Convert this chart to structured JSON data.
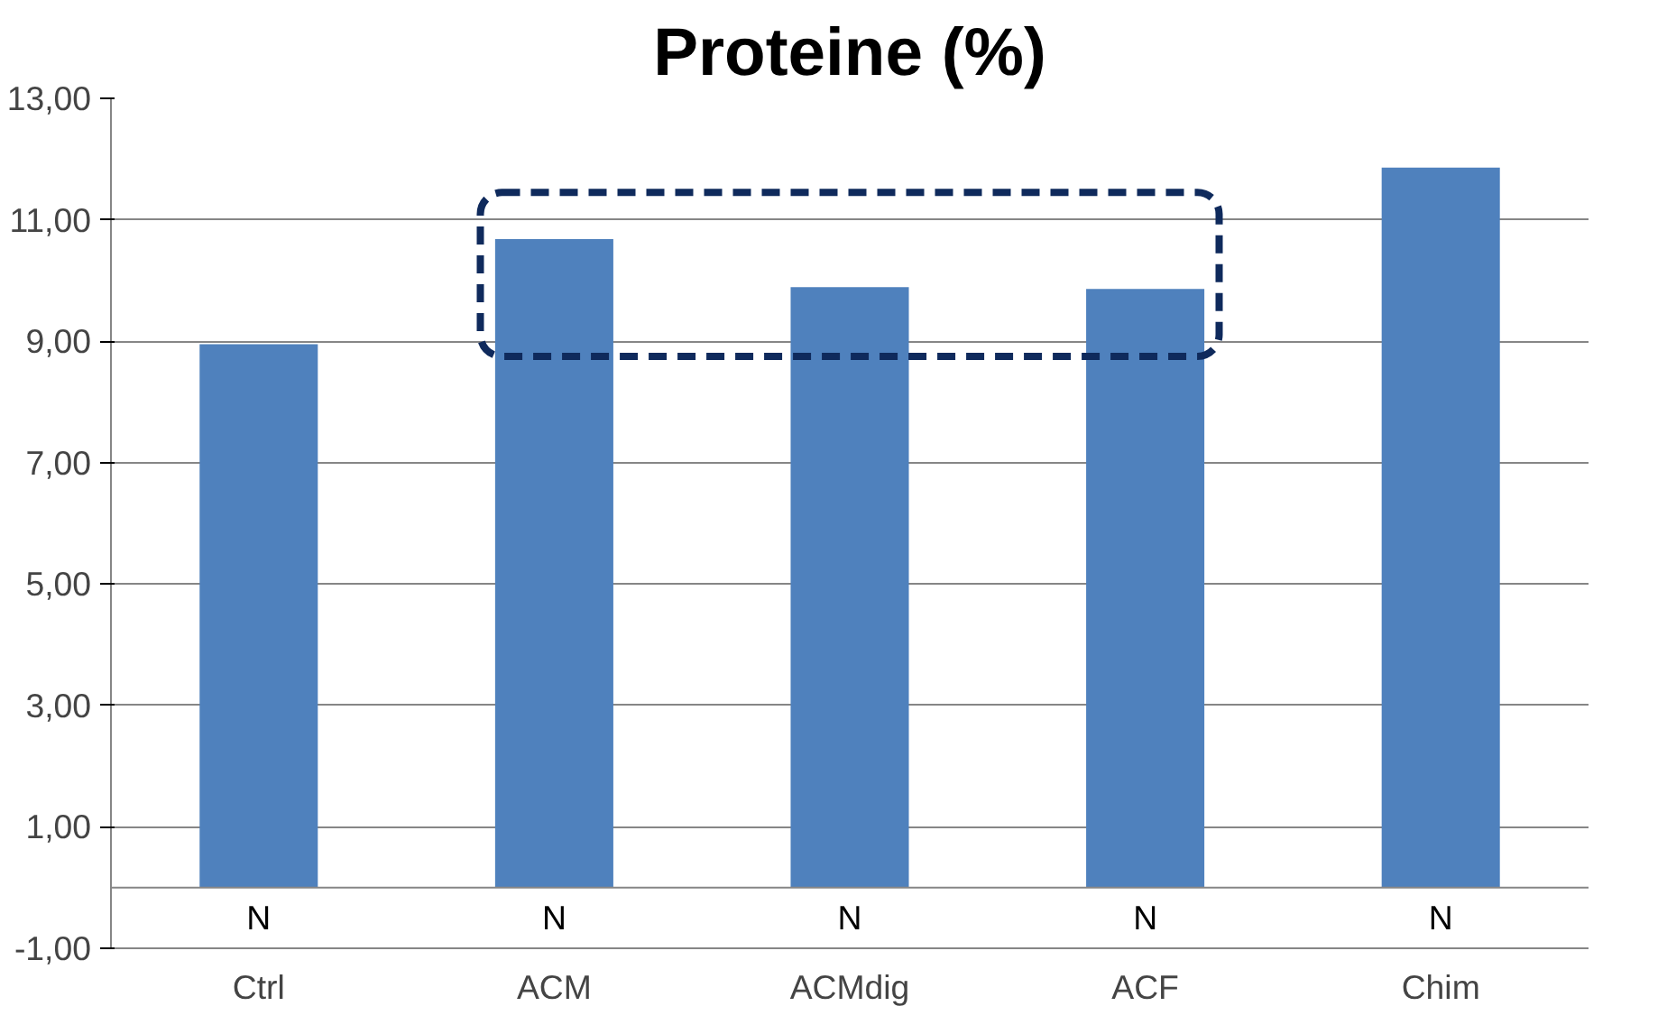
{
  "chart_data": {
    "type": "bar",
    "title": "Proteine (%)",
    "categories": [
      "Ctrl",
      "ACM",
      "ACMdig",
      "ACF",
      "Chim"
    ],
    "values": [
      8.95,
      10.68,
      9.89,
      9.86,
      11.86
    ],
    "color": "#4f81bd",
    "ylim": [
      -1,
      13
    ],
    "yticks": [
      {
        "value": -1,
        "label": "-1,00"
      },
      {
        "value": 1,
        "label": "1,00"
      },
      {
        "value": 3,
        "label": "3,00"
      },
      {
        "value": 5,
        "label": "5,00"
      },
      {
        "value": 7,
        "label": "7,00"
      },
      {
        "value": 9,
        "label": "9,00"
      },
      {
        "value": 11,
        "label": "11,00"
      },
      {
        "value": 13,
        "label": "13,00"
      }
    ],
    "grid": "y",
    "annotations": [
      "N",
      "N",
      "N",
      "N",
      "N"
    ]
  }
}
